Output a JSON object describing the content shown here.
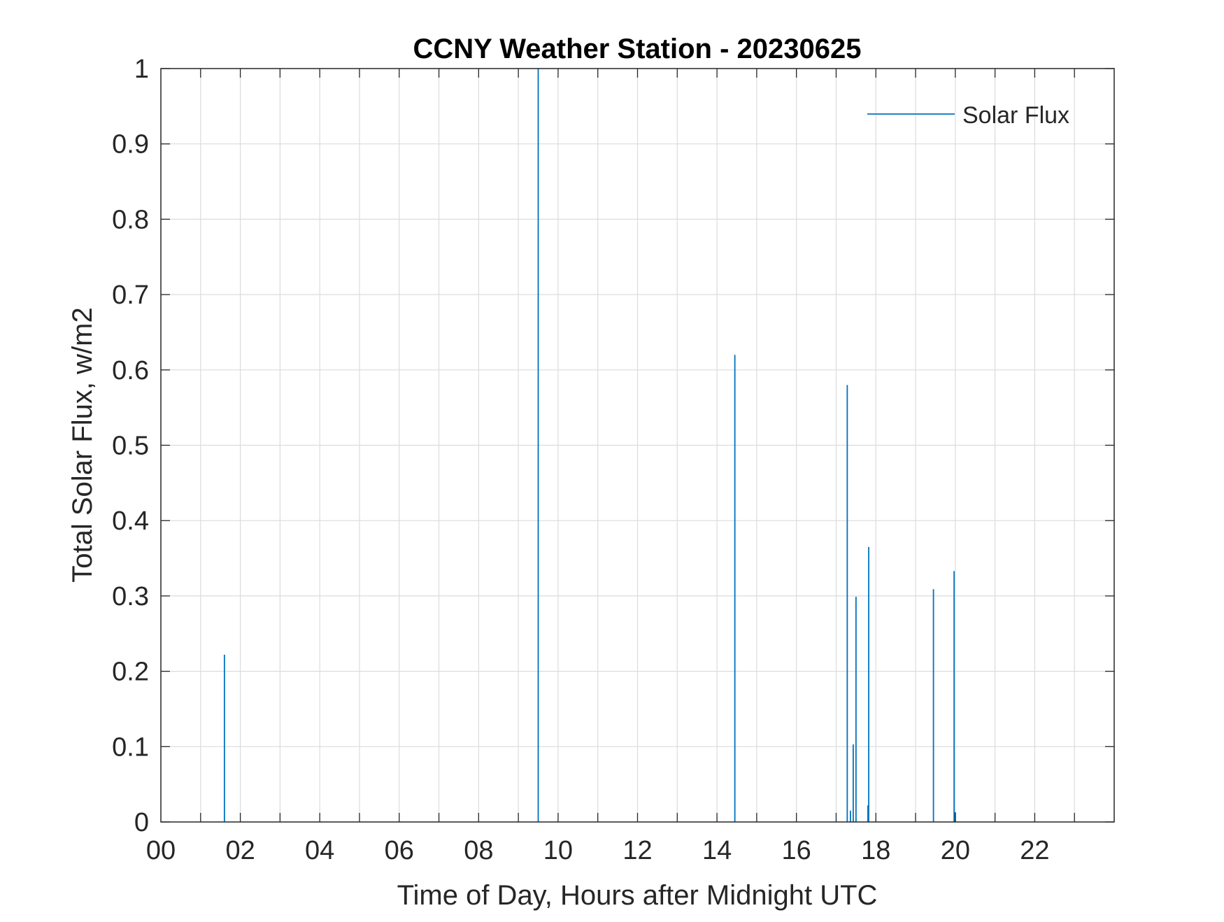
{
  "chart_data": {
    "type": "line",
    "title": "CCNY Weather Station - 20230625",
    "xlabel": "Time of Day, Hours after Midnight UTC",
    "ylabel": "Total Solar Flux, w/m2",
    "xlim": [
      0,
      24
    ],
    "ylim": [
      0,
      1
    ],
    "x_ticks": [
      "00",
      "02",
      "04",
      "06",
      "08",
      "10",
      "12",
      "14",
      "16",
      "18",
      "20",
      "22"
    ],
    "y_ticks": [
      "0",
      "0.1",
      "0.2",
      "0.3",
      "0.4",
      "0.5",
      "0.6",
      "0.7",
      "0.8",
      "0.9",
      "1"
    ],
    "grid": true,
    "legend_position": "top-right",
    "series": [
      {
        "name": "Solar Flux",
        "color": "#0072bd",
        "spikes": [
          {
            "x": 1.6,
            "y": 0.222
          },
          {
            "x": 9.5,
            "y": 1.0
          },
          {
            "x": 14.45,
            "y": 0.62
          },
          {
            "x": 17.28,
            "y": 0.58
          },
          {
            "x": 17.36,
            "y": 0.015
          },
          {
            "x": 17.43,
            "y": 0.103
          },
          {
            "x": 17.5,
            "y": 0.299
          },
          {
            "x": 17.8,
            "y": 0.022
          },
          {
            "x": 17.82,
            "y": 0.365
          },
          {
            "x": 19.45,
            "y": 0.309
          },
          {
            "x": 19.97,
            "y": 0.333
          },
          {
            "x": 20.0,
            "y": 0.013
          }
        ]
      }
    ]
  }
}
